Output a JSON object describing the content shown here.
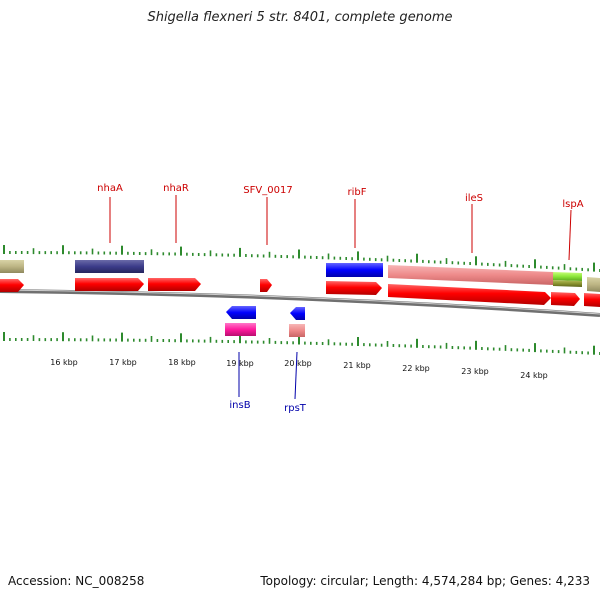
{
  "title": "Shigella flexneri 5 str. 8401, complete genome",
  "footer": {
    "accession": "Accession: NC_008258",
    "summary": "Topology: circular; Length: 4,574,284 bp; Genes: 4,233"
  },
  "colors": {
    "cds_forward": "#ff0000",
    "cds_reverse": "#ff0000",
    "gene_label_top": "#cc0000",
    "gene_label_bottom": "#0000aa",
    "tick": "#2d8a2d",
    "backbone": "#808080"
  },
  "axis": {
    "labels": [
      "16 kbp",
      "17 kbp",
      "18 kbp",
      "19 kbp",
      "20 kbp",
      "21 kbp",
      "22 kbp",
      "23 kbp",
      "24 kbp"
    ]
  },
  "genes_top": [
    {
      "name": "nhaA"
    },
    {
      "name": "nhaR"
    },
    {
      "name": "SFV_0017"
    },
    {
      "name": "ribF"
    },
    {
      "name": "ileS"
    },
    {
      "name": "lspA"
    }
  ],
  "genes_bottom": [
    {
      "name": "insB"
    },
    {
      "name": "rpsT"
    }
  ]
}
